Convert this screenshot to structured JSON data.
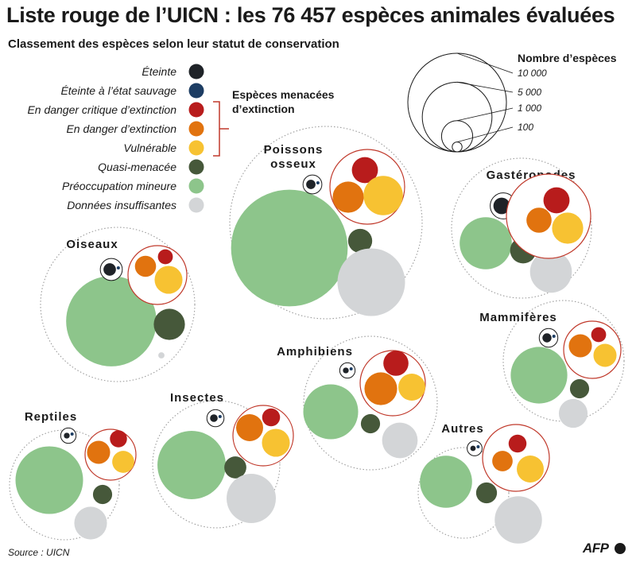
{
  "title": "Liste rouge de l’UICN : les 76 457 espèces animales évaluées",
  "subtitle": "Classement des espèces selon leur statut de conservation",
  "source": "Source : UICN",
  "logo": "AFP",
  "colors": {
    "eteinte": "#1f2328",
    "eteinte_sauvage": "#1d3d63",
    "critique": "#b81c1c",
    "danger": "#e1730f",
    "vulnerable": "#f7c232",
    "quasi": "#46583a",
    "mineure": "#8dc58b",
    "insuffisantes": "#d3d5d7",
    "threat_ring": "#c0392b",
    "group_ring": "#9b9b9b"
  },
  "legend": {
    "statuses": [
      {
        "key": "eteinte",
        "label": "Éteinte"
      },
      {
        "key": "eteinte_sauvage",
        "label": "Éteinte à l’état sauvage"
      },
      {
        "key": "critique",
        "label": "En danger critique d’extinction"
      },
      {
        "key": "danger",
        "label": "En danger d’extinction"
      },
      {
        "key": "vulnerable",
        "label": "Vulnérable"
      },
      {
        "key": "quasi",
        "label": "Quasi-menacée"
      },
      {
        "key": "mineure",
        "label": "Préoccupation mineure"
      },
      {
        "key": "insuffisantes",
        "label": "Données insuffisantes"
      }
    ],
    "threatened_line1": "Espèces menacées",
    "threatened_line2": "d’extinction"
  },
  "scale": {
    "title": "Nombre d’espèces",
    "values": [
      10000,
      5000,
      1000,
      100
    ],
    "labels": [
      "10 000",
      "5 000",
      "1 000",
      "100"
    ]
  },
  "chart_data": {
    "type": "bubble-groups",
    "title": "Liste rouge de l’UICN : les 76 457 espèces animales évaluées",
    "subtitle": "Classement des espèces selon leur statut de conservation",
    "size_encoding": "area proportional to number of species (approximate)",
    "groups": [
      {
        "name": "Poissons osseux",
        "values": {
          "eteinte": 90,
          "eteinte_sauvage": 12,
          "critique": 700,
          "danger": 1000,
          "vulnerable": 1600,
          "quasi": 600,
          "mineure": 14000,
          "insuffisantes": 4700
        }
      },
      {
        "name": "Gastéropodes",
        "values": {
          "eteinte": 280,
          "eteinte_sauvage": 15,
          "critique": 700,
          "danger": 650,
          "vulnerable": 1000,
          "quasi": 700,
          "mineure": 2800,
          "insuffisantes": 1800
        }
      },
      {
        "name": "Oiseaux",
        "values": {
          "eteinte": 160,
          "eteinte_sauvage": 5,
          "critique": 230,
          "danger": 460,
          "vulnerable": 800,
          "quasi": 1000,
          "mineure": 8400,
          "insuffisantes": 40
        }
      },
      {
        "name": "Mammifères",
        "values": {
          "eteinte": 85,
          "eteinte_sauvage": 2,
          "critique": 230,
          "danger": 550,
          "vulnerable": 550,
          "quasi": 380,
          "mineure": 3300,
          "insuffisantes": 850
        }
      },
      {
        "name": "Amphibiens",
        "values": {
          "eteinte": 35,
          "eteinte_sauvage": 2,
          "critique": 650,
          "danger": 1100,
          "vulnerable": 750,
          "quasi": 380,
          "mineure": 3100,
          "insuffisantes": 1300
        }
      },
      {
        "name": "Insectes",
        "values": {
          "eteinte": 60,
          "eteinte_sauvage": 1,
          "critique": 330,
          "danger": 750,
          "vulnerable": 800,
          "quasi": 500,
          "mineure": 4800,
          "insuffisantes": 2500
        }
      },
      {
        "name": "Reptiles",
        "values": {
          "eteinte": 35,
          "eteinte_sauvage": 2,
          "critique": 300,
          "danger": 550,
          "vulnerable": 500,
          "quasi": 380,
          "mineure": 4700,
          "insuffisantes": 1100
        }
      },
      {
        "name": "Autres",
        "values": {
          "eteinte": 30,
          "eteinte_sauvage": 1,
          "critique": 330,
          "danger": 430,
          "vulnerable": 750,
          "quasi": 450,
          "mineure": 2800,
          "insuffisantes": 2300
        }
      }
    ]
  }
}
